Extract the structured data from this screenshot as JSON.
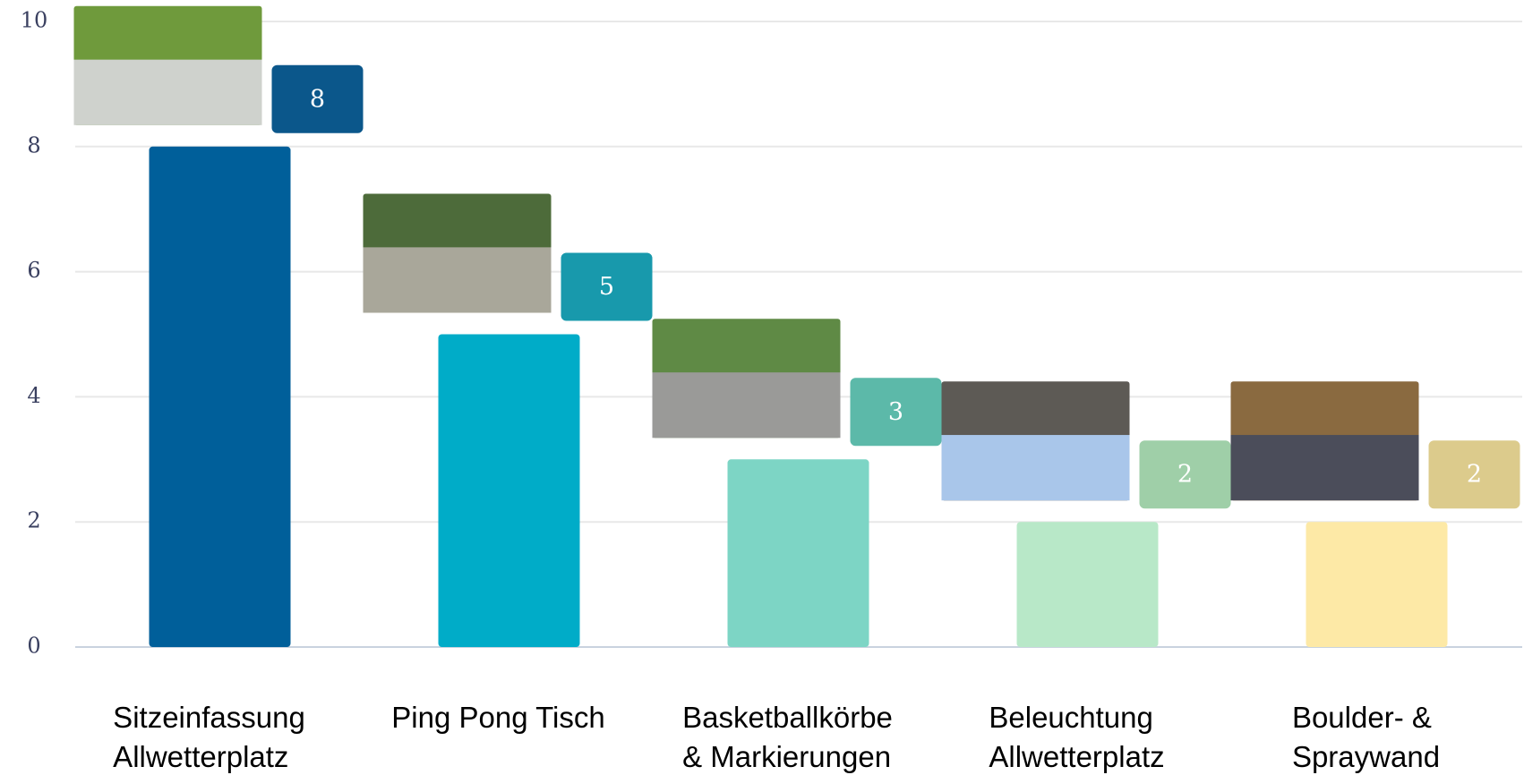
{
  "chart_data": {
    "type": "bar",
    "categories": [
      "Sitzeinfassung\nAllwetterplatz",
      "Ping Pong Tisch",
      "Basketballkörbe\n& Markierungen",
      "Beleuchtung\nAllwetterplatz",
      "Boulder- &\nSpraywand"
    ],
    "values": [
      8,
      5,
      3,
      2,
      2
    ],
    "colors": [
      "#005f9a",
      "#00acc8",
      "#7dd5c5",
      "#b8e8c8",
      "#fde9a6"
    ],
    "label_colors": [
      "#0b578b",
      "#1899ac",
      "#5cb9a9",
      "#9fcfa8",
      "#dccb8c"
    ],
    "ylim": [
      0,
      10
    ],
    "yticks": [
      0,
      2,
      4,
      6,
      8,
      10
    ],
    "grid": true
  }
}
